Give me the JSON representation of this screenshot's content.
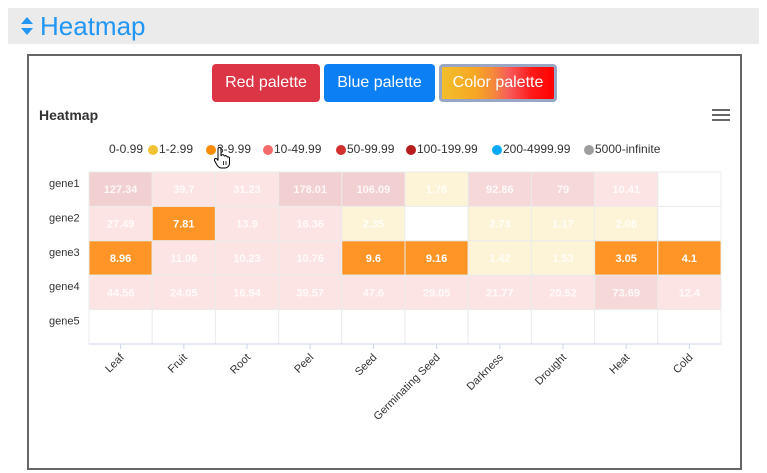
{
  "section": {
    "title": "Heatmap",
    "title_color": "#2196f3"
  },
  "buttons": {
    "red": "Red palette",
    "blue": "Blue palette",
    "color": "Color palette"
  },
  "chart_data": {
    "type": "heatmap",
    "title": "Heatmap",
    "legend": [
      {
        "label": "0-0.99",
        "color": null
      },
      {
        "label": "1-2.99",
        "color": "#f1c232"
      },
      {
        "label": "3-9.99",
        "color": "#fb8c00"
      },
      {
        "label": "10-49.99",
        "color": "#f36b6b"
      },
      {
        "label": "50-99.99",
        "color": "#d32f2f"
      },
      {
        "label": "100-199.99",
        "color": "#b71c1c"
      },
      {
        "label": "200-4999.99",
        "color": "#03a9f4"
      },
      {
        "label": "5000-infinite",
        "color": "#9e9e9e"
      }
    ],
    "x_categories": [
      "Leaf",
      "Fruit",
      "Root",
      "Peel",
      "Seed",
      "Germinating Seed",
      "Darkness",
      "Drought",
      "Heat",
      "Cold"
    ],
    "y_categories": [
      "gene1",
      "gene2",
      "gene3",
      "gene4",
      "gene5"
    ],
    "values": [
      [
        127.34,
        39.7,
        31.23,
        178.01,
        106.09,
        1.76,
        92.86,
        79,
        10.41,
        null
      ],
      [
        27.49,
        7.81,
        13.9,
        16.36,
        2.35,
        null,
        2.73,
        1.17,
        2.08,
        null
      ],
      [
        8.96,
        11.06,
        10.23,
        10.76,
        9.6,
        9.16,
        1.42,
        1.53,
        3.05,
        4.1
      ],
      [
        44.56,
        24.05,
        16.94,
        39.57,
        47.6,
        29.05,
        21.77,
        20.52,
        73.69,
        12.4
      ],
      [
        null,
        null,
        null,
        null,
        null,
        null,
        null,
        null,
        null,
        null
      ]
    ]
  }
}
